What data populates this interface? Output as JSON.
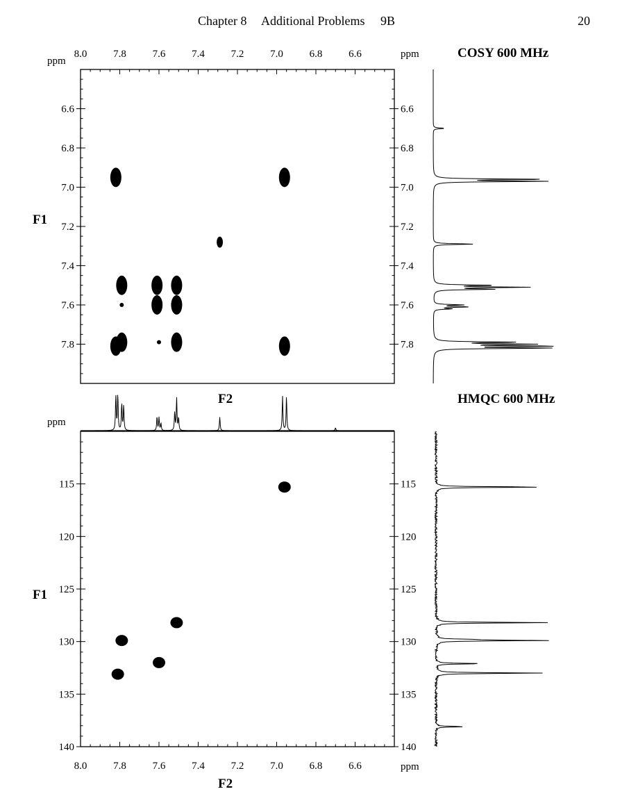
{
  "header": {
    "chapter": "Chapter 8",
    "section": "Additional Problems",
    "problem": "9B",
    "page_number": "20"
  },
  "chart_data": [
    {
      "type": "scatter",
      "title": "COSY 600 MHz",
      "xlabel": "F2",
      "ylabel": "F1",
      "x_unit": "ppm",
      "y_unit": "ppm",
      "xlim": [
        8.0,
        6.4
      ],
      "ylim": [
        6.4,
        8.0
      ],
      "x_ticks": [
        "8.0",
        "7.8",
        "7.6",
        "7.4",
        "7.2",
        "7.0",
        "6.8",
        "6.6"
      ],
      "y_ticks": [
        "6.6",
        "6.8",
        "7.0",
        "7.2",
        "7.4",
        "7.6",
        "7.8"
      ],
      "points": [
        {
          "x": 7.82,
          "y": 6.95,
          "size": "large"
        },
        {
          "x": 6.96,
          "y": 6.95,
          "size": "large"
        },
        {
          "x": 7.29,
          "y": 7.28,
          "size": "small"
        },
        {
          "x": 7.79,
          "y": 7.5,
          "size": "large"
        },
        {
          "x": 7.61,
          "y": 7.5,
          "size": "large"
        },
        {
          "x": 7.51,
          "y": 7.5,
          "size": "large"
        },
        {
          "x": 7.79,
          "y": 7.6,
          "size": "tiny"
        },
        {
          "x": 7.61,
          "y": 7.6,
          "size": "large"
        },
        {
          "x": 7.51,
          "y": 7.6,
          "size": "large"
        },
        {
          "x": 7.82,
          "y": 7.81,
          "size": "large"
        },
        {
          "x": 7.79,
          "y": 7.79,
          "size": "large"
        },
        {
          "x": 7.6,
          "y": 7.79,
          "size": "tiny"
        },
        {
          "x": 7.51,
          "y": 7.79,
          "size": "large"
        },
        {
          "x": 6.96,
          "y": 7.81,
          "size": "large"
        }
      ],
      "projection_peaks": [
        {
          "ppm": 6.7,
          "height": 0.1
        },
        {
          "ppm": 6.97,
          "height": 0.95
        },
        {
          "ppm": 6.96,
          "height": 0.95
        },
        {
          "ppm": 7.29,
          "height": 0.35
        },
        {
          "ppm": 7.5,
          "height": 0.5
        },
        {
          "ppm": 7.51,
          "height": 0.8
        },
        {
          "ppm": 7.52,
          "height": 0.5
        },
        {
          "ppm": 7.6,
          "height": 0.25
        },
        {
          "ppm": 7.61,
          "height": 0.3
        },
        {
          "ppm": 7.62,
          "height": 0.15
        },
        {
          "ppm": 7.79,
          "height": 0.7
        },
        {
          "ppm": 7.8,
          "height": 0.8
        },
        {
          "ppm": 7.81,
          "height": 1.0
        },
        {
          "ppm": 7.82,
          "height": 1.0
        }
      ]
    },
    {
      "type": "scatter",
      "title": "HMQC 600 MHz",
      "xlabel": "F2",
      "ylabel": "F1",
      "x_unit": "ppm",
      "y_unit": "ppm",
      "xlim": [
        8.0,
        6.4
      ],
      "ylim": [
        110,
        140
      ],
      "x_ticks": [
        "8.0",
        "7.8",
        "7.6",
        "7.4",
        "7.2",
        "7.0",
        "6.8",
        "6.6"
      ],
      "y_ticks": [
        "115",
        "120",
        "125",
        "130",
        "135",
        "140"
      ],
      "points": [
        {
          "x": 6.96,
          "y": 115.3
        },
        {
          "x": 7.51,
          "y": 128.2
        },
        {
          "x": 7.79,
          "y": 129.9
        },
        {
          "x": 7.6,
          "y": 132.0
        },
        {
          "x": 7.81,
          "y": 133.1
        }
      ],
      "top_projection_peaks": [
        {
          "ppm": 7.82,
          "height": 0.98
        },
        {
          "ppm": 7.81,
          "height": 1.0
        },
        {
          "ppm": 7.79,
          "height": 0.75
        },
        {
          "ppm": 7.78,
          "height": 0.7
        },
        {
          "ppm": 7.61,
          "height": 0.38
        },
        {
          "ppm": 7.6,
          "height": 0.36
        },
        {
          "ppm": 7.59,
          "height": 0.2
        },
        {
          "ppm": 7.52,
          "height": 0.5
        },
        {
          "ppm": 7.51,
          "height": 0.9
        },
        {
          "ppm": 7.5,
          "height": 0.35
        },
        {
          "ppm": 7.29,
          "height": 0.38
        },
        {
          "ppm": 6.97,
          "height": 0.95
        },
        {
          "ppm": 6.95,
          "height": 0.95
        },
        {
          "ppm": 6.7,
          "height": 0.08
        }
      ],
      "carbon_projection_peaks": [
        {
          "ppm": 115.3,
          "height": 1.0
        },
        {
          "ppm": 128.2,
          "height": 1.0
        },
        {
          "ppm": 129.9,
          "height": 1.0
        },
        {
          "ppm": 129.8,
          "height": 0.26
        },
        {
          "ppm": 132.1,
          "height": 0.44
        },
        {
          "ppm": 133.0,
          "height": 0.96
        },
        {
          "ppm": 138.1,
          "height": 0.26
        }
      ]
    }
  ]
}
